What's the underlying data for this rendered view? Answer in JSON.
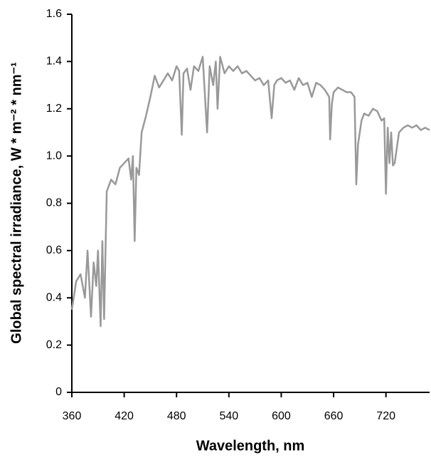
{
  "chart_data": {
    "type": "line",
    "x_label": "Wavelength, nm",
    "y_label": "Global spectral irradiance, W * m⁻² * nm⁻¹",
    "xlim": [
      360,
      770
    ],
    "xticks": [
      360,
      420,
      480,
      540,
      600,
      660,
      720
    ],
    "ylim": [
      0,
      1.6
    ],
    "yticks": [
      0,
      0.2,
      0.4,
      0.6,
      0.8,
      {
        "value": 1,
        "label": "1.0"
      },
      1.2,
      1.4,
      1.6
    ],
    "series": [
      {
        "color": "#999999",
        "x": [
          360,
          365,
          370,
          375,
          378,
          382,
          385,
          388,
          390,
          393,
          395,
          397,
          400,
          405,
          410,
          415,
          420,
          425,
          428,
          430,
          432,
          434,
          437,
          440,
          445,
          450,
          455,
          460,
          465,
          470,
          475,
          480,
          483,
          486,
          488,
          492,
          496,
          500,
          505,
          510,
          515,
          518,
          522,
          525,
          527,
          530,
          535,
          540,
          545,
          550,
          555,
          560,
          565,
          570,
          575,
          580,
          585,
          589,
          592,
          595,
          600,
          605,
          610,
          615,
          620,
          625,
          630,
          635,
          640,
          645,
          650,
          655,
          656,
          658,
          660,
          665,
          670,
          675,
          680,
          684,
          686,
          688,
          692,
          695,
          700,
          705,
          710,
          715,
          718,
          720,
          722,
          724,
          726,
          728,
          730,
          735,
          740,
          745,
          750,
          755,
          760,
          765,
          770
        ],
        "values": [
          0.35,
          0.47,
          0.5,
          0.4,
          0.6,
          0.32,
          0.55,
          0.45,
          0.6,
          0.28,
          0.64,
          0.31,
          0.85,
          0.9,
          0.88,
          0.95,
          0.97,
          0.99,
          0.9,
          1.0,
          0.64,
          0.95,
          0.92,
          1.1,
          1.17,
          1.25,
          1.34,
          1.29,
          1.32,
          1.35,
          1.32,
          1.38,
          1.36,
          1.09,
          1.35,
          1.37,
          1.28,
          1.38,
          1.36,
          1.42,
          1.1,
          1.38,
          1.3,
          1.4,
          1.2,
          1.42,
          1.35,
          1.38,
          1.36,
          1.38,
          1.35,
          1.36,
          1.34,
          1.32,
          1.33,
          1.3,
          1.32,
          1.16,
          1.3,
          1.32,
          1.33,
          1.31,
          1.32,
          1.28,
          1.33,
          1.3,
          1.31,
          1.25,
          1.31,
          1.3,
          1.28,
          1.25,
          1.07,
          1.22,
          1.27,
          1.29,
          1.28,
          1.27,
          1.27,
          1.25,
          0.88,
          1.05,
          1.15,
          1.18,
          1.17,
          1.2,
          1.19,
          1.15,
          1.16,
          0.84,
          1.12,
          0.97,
          1.1,
          0.96,
          0.97,
          1.1,
          1.12,
          1.13,
          1.12,
          1.13,
          1.11,
          1.12,
          1.11
        ]
      }
    ]
  }
}
